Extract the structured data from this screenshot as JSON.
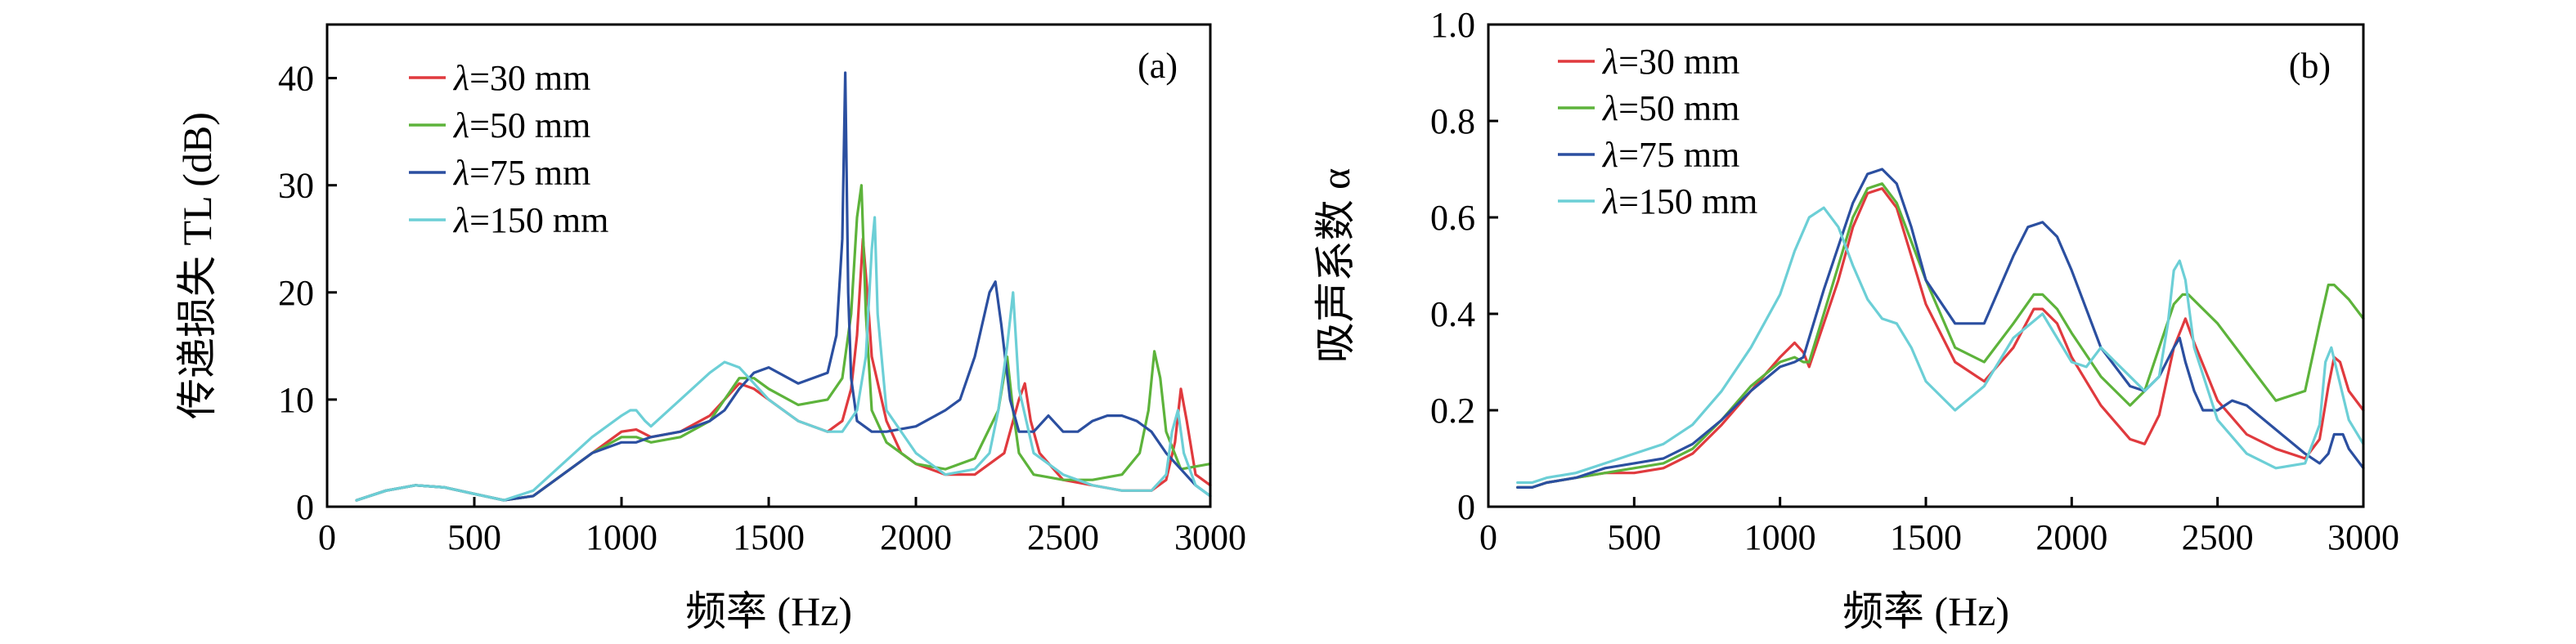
{
  "chart_data": [
    {
      "type": "line",
      "panel_tag": "(a)",
      "xlabel": "频率 (Hz)",
      "ylabel": "传递损失 TL (dB)",
      "xlim": [
        0,
        3000
      ],
      "ylim": [
        0,
        45
      ],
      "xticks": [
        0,
        500,
        1000,
        1500,
        2000,
        2500,
        3000
      ],
      "yticks": [
        0,
        10,
        20,
        30,
        40
      ],
      "grid": false,
      "legend_position": "top-left",
      "series": [
        {
          "name": "λ=30 mm",
          "color": "#e03a3e",
          "x": [
            100,
            200,
            300,
            400,
            500,
            600,
            700,
            800,
            900,
            1000,
            1050,
            1100,
            1200,
            1300,
            1350,
            1400,
            1450,
            1500,
            1600,
            1700,
            1750,
            1780,
            1800,
            1820,
            1835,
            1850,
            1900,
            1950,
            2000,
            2100,
            2200,
            2300,
            2350,
            2370,
            2390,
            2420,
            2500,
            2600,
            2700,
            2800,
            2850,
            2880,
            2900,
            2920,
            2950,
            3000
          ],
          "y": [
            0.6,
            1.5,
            2,
            1.8,
            1.2,
            0.6,
            1,
            3,
            5,
            7,
            7.2,
            6.5,
            7,
            8.5,
            10,
            11.5,
            11,
            10,
            8,
            7,
            8,
            11,
            16,
            25,
            20,
            14,
            8,
            5,
            4,
            3,
            3,
            5,
            10,
            11.5,
            8,
            5,
            2.5,
            2,
            1.5,
            1.5,
            2.5,
            6,
            11,
            8,
            3,
            2
          ]
        },
        {
          "name": "λ=50 mm",
          "color": "#5db33b",
          "x": [
            100,
            200,
            300,
            400,
            500,
            600,
            700,
            800,
            900,
            1000,
            1050,
            1100,
            1200,
            1300,
            1350,
            1400,
            1450,
            1500,
            1600,
            1700,
            1750,
            1780,
            1800,
            1815,
            1830,
            1850,
            1900,
            2000,
            2100,
            2200,
            2280,
            2310,
            2330,
            2350,
            2400,
            2500,
            2600,
            2700,
            2760,
            2790,
            2810,
            2830,
            2850,
            2900,
            3000
          ],
          "y": [
            0.6,
            1.5,
            2,
            1.8,
            1.2,
            0.6,
            1,
            3,
            5,
            6.5,
            6.5,
            6,
            6.5,
            8,
            10,
            12,
            12,
            11,
            9.5,
            10,
            12,
            18,
            27,
            30,
            18,
            9,
            6,
            4,
            3.5,
            4.5,
            9,
            14,
            9,
            5,
            3,
            2.5,
            2.5,
            3,
            5,
            9,
            14.5,
            12,
            7,
            3.5,
            4
          ]
        },
        {
          "name": "λ=75 mm",
          "color": "#2b4fa0",
          "x": [
            100,
            200,
            300,
            400,
            500,
            600,
            700,
            800,
            900,
            1000,
            1050,
            1100,
            1200,
            1300,
            1350,
            1400,
            1450,
            1500,
            1600,
            1700,
            1730,
            1750,
            1760,
            1770,
            1780,
            1800,
            1850,
            1900,
            2000,
            2100,
            2150,
            2200,
            2250,
            2270,
            2290,
            2320,
            2350,
            2400,
            2450,
            2500,
            2550,
            2600,
            2650,
            2700,
            2750,
            2800,
            2850,
            2900,
            2950,
            3000
          ],
          "y": [
            0.6,
            1.5,
            2,
            1.8,
            1.2,
            0.6,
            1,
            3,
            5,
            6,
            6,
            6.5,
            7,
            8,
            9,
            11,
            12.5,
            13,
            11.5,
            12.5,
            16,
            25,
            40.5,
            20,
            12,
            8,
            7,
            7,
            7.5,
            9,
            10,
            14,
            20,
            21,
            17,
            10,
            7,
            7,
            8.5,
            7,
            7,
            8,
            8.5,
            8.5,
            8,
            7,
            5,
            3.5,
            2,
            1
          ]
        },
        {
          "name": "λ=150 mm",
          "color": "#6ccfd6",
          "x": [
            100,
            200,
            300,
            400,
            500,
            600,
            700,
            800,
            900,
            1000,
            1030,
            1050,
            1080,
            1100,
            1200,
            1300,
            1350,
            1400,
            1450,
            1500,
            1600,
            1700,
            1750,
            1800,
            1830,
            1850,
            1860,
            1870,
            1900,
            2000,
            2100,
            2200,
            2250,
            2280,
            2310,
            2330,
            2350,
            2400,
            2500,
            2600,
            2700,
            2800,
            2850,
            2870,
            2890,
            2910,
            2950,
            3000
          ],
          "y": [
            0.6,
            1.5,
            2,
            1.8,
            1.2,
            0.6,
            1.5,
            4,
            6.5,
            8.5,
            9,
            9,
            8,
            7.5,
            10,
            12.5,
            13.5,
            13,
            11.5,
            10,
            8,
            7,
            7,
            9,
            14,
            24,
            27,
            18,
            9,
            5,
            3,
            3.5,
            5,
            9,
            15,
            20,
            11,
            5,
            3,
            2,
            1.5,
            1.5,
            3,
            7,
            9,
            5,
            2,
            1
          ]
        }
      ]
    },
    {
      "type": "line",
      "panel_tag": "(b)",
      "xlabel": "频率 (Hz)",
      "ylabel": "吸声系数 α",
      "xlim": [
        0,
        3000
      ],
      "ylim": [
        0,
        1.0
      ],
      "xticks": [
        0,
        500,
        1000,
        1500,
        2000,
        2500,
        3000
      ],
      "yticks": [
        "0",
        "0.2",
        "0.4",
        "0.6",
        "0.8",
        "1.0"
      ],
      "grid": false,
      "legend_position": "top-left",
      "series": [
        {
          "name": "λ=30 mm",
          "color": "#e03a3e",
          "x": [
            100,
            150,
            200,
            300,
            400,
            500,
            600,
            700,
            800,
            900,
            1000,
            1050,
            1080,
            1100,
            1150,
            1200,
            1250,
            1300,
            1350,
            1400,
            1450,
            1500,
            1600,
            1700,
            1800,
            1870,
            1900,
            1950,
            2000,
            2100,
            2200,
            2250,
            2300,
            2350,
            2390,
            2420,
            2500,
            2600,
            2700,
            2800,
            2850,
            2880,
            2900,
            2920,
            2950,
            3000
          ],
          "y": [
            0.04,
            0.04,
            0.05,
            0.06,
            0.07,
            0.07,
            0.08,
            0.11,
            0.17,
            0.24,
            0.31,
            0.34,
            0.32,
            0.29,
            0.38,
            0.47,
            0.58,
            0.65,
            0.66,
            0.62,
            0.52,
            0.42,
            0.3,
            0.26,
            0.33,
            0.41,
            0.41,
            0.38,
            0.31,
            0.21,
            0.14,
            0.13,
            0.19,
            0.33,
            0.39,
            0.34,
            0.22,
            0.15,
            0.12,
            0.1,
            0.14,
            0.25,
            0.31,
            0.3,
            0.24,
            0.2
          ]
        },
        {
          "name": "λ=50 mm",
          "color": "#5db33b",
          "x": [
            100,
            150,
            200,
            300,
            400,
            500,
            600,
            700,
            800,
            900,
            1000,
            1050,
            1080,
            1100,
            1150,
            1200,
            1250,
            1300,
            1350,
            1400,
            1450,
            1500,
            1600,
            1700,
            1800,
            1870,
            1900,
            1950,
            2000,
            2100,
            2200,
            2250,
            2300,
            2350,
            2380,
            2400,
            2500,
            2600,
            2700,
            2800,
            2850,
            2880,
            2900,
            2950,
            3000
          ],
          "y": [
            0.04,
            0.04,
            0.05,
            0.06,
            0.07,
            0.08,
            0.09,
            0.12,
            0.18,
            0.25,
            0.3,
            0.31,
            0.3,
            0.3,
            0.4,
            0.5,
            0.6,
            0.66,
            0.67,
            0.63,
            0.55,
            0.47,
            0.33,
            0.3,
            0.38,
            0.44,
            0.44,
            0.41,
            0.36,
            0.27,
            0.21,
            0.24,
            0.33,
            0.42,
            0.44,
            0.44,
            0.38,
            0.3,
            0.22,
            0.24,
            0.38,
            0.46,
            0.46,
            0.43,
            0.39
          ]
        },
        {
          "name": "λ=75 mm",
          "color": "#2b4fa0",
          "x": [
            100,
            150,
            200,
            300,
            400,
            500,
            600,
            700,
            800,
            900,
            1000,
            1050,
            1080,
            1100,
            1150,
            1200,
            1250,
            1300,
            1350,
            1400,
            1450,
            1500,
            1600,
            1700,
            1800,
            1850,
            1900,
            1950,
            2000,
            2100,
            2200,
            2250,
            2300,
            2350,
            2370,
            2390,
            2420,
            2450,
            2500,
            2550,
            2600,
            2700,
            2800,
            2850,
            2880,
            2900,
            2930,
            2950,
            3000
          ],
          "y": [
            0.04,
            0.04,
            0.05,
            0.06,
            0.08,
            0.09,
            0.1,
            0.13,
            0.18,
            0.24,
            0.29,
            0.3,
            0.31,
            0.35,
            0.45,
            0.54,
            0.63,
            0.69,
            0.7,
            0.67,
            0.58,
            0.47,
            0.38,
            0.38,
            0.52,
            0.58,
            0.59,
            0.56,
            0.49,
            0.33,
            0.25,
            0.24,
            0.27,
            0.33,
            0.35,
            0.3,
            0.24,
            0.2,
            0.2,
            0.22,
            0.21,
            0.16,
            0.11,
            0.09,
            0.11,
            0.15,
            0.15,
            0.12,
            0.08
          ]
        },
        {
          "name": "λ=150 mm",
          "color": "#6ccfd6",
          "x": [
            100,
            150,
            200,
            300,
            400,
            500,
            600,
            700,
            800,
            900,
            1000,
            1050,
            1100,
            1150,
            1200,
            1250,
            1300,
            1350,
            1400,
            1450,
            1500,
            1600,
            1700,
            1800,
            1900,
            2000,
            2050,
            2100,
            2150,
            2200,
            2250,
            2300,
            2330,
            2350,
            2370,
            2390,
            2420,
            2500,
            2600,
            2700,
            2800,
            2850,
            2870,
            2890,
            2910,
            2950,
            3000
          ],
          "y": [
            0.05,
            0.05,
            0.06,
            0.07,
            0.09,
            0.11,
            0.13,
            0.17,
            0.24,
            0.33,
            0.44,
            0.53,
            0.6,
            0.62,
            0.58,
            0.5,
            0.43,
            0.39,
            0.38,
            0.33,
            0.26,
            0.2,
            0.25,
            0.35,
            0.4,
            0.3,
            0.29,
            0.33,
            0.3,
            0.27,
            0.24,
            0.27,
            0.38,
            0.49,
            0.51,
            0.47,
            0.33,
            0.18,
            0.11,
            0.08,
            0.09,
            0.17,
            0.3,
            0.33,
            0.28,
            0.18,
            0.13
          ]
        }
      ]
    }
  ]
}
